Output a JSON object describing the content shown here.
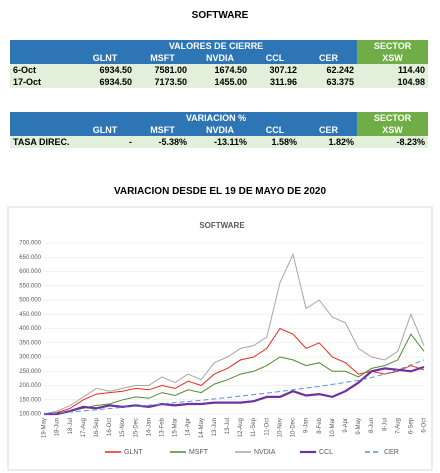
{
  "title": "SOFTWARE",
  "table1": {
    "group": "VALORES DE CIERRE",
    "sector": "SECTOR",
    "columns": [
      "GLNT",
      "MSFT",
      "NVDIA",
      "CCL",
      "CER",
      "XSW"
    ],
    "rows": [
      [
        "6-Oct",
        "6934.50",
        "7581.00",
        "1674.50",
        "307.12",
        "62.242",
        "114.40"
      ],
      [
        "17-Oct",
        "6934.50",
        "7173.50",
        "1455.00",
        "311.96",
        "63.375",
        "104.98"
      ]
    ]
  },
  "table2": {
    "group": "VARIACION %",
    "sector": "SECTOR",
    "columns": [
      "GLNT",
      "MSFT",
      "NVDIA",
      "CCL",
      "CER",
      "XSW"
    ],
    "rows": [
      [
        "TASA DIREC.",
        "-",
        "-5.38%",
        "-13.11%",
        "1.58%",
        "1.82%",
        "-8.23%"
      ]
    ]
  },
  "heading": "VARIACION DESDE EL 19 DE MAYO DE 2020",
  "chart_data": {
    "type": "line",
    "title": "SOFTWARE",
    "categories": [
      "19-May",
      "18-Jun",
      "18-Jul",
      "17-Aug",
      "16-Sep",
      "16-Oct",
      "15-Nov",
      "15-Dec",
      "14-Jan",
      "13-Feb",
      "15-Mar",
      "14-Apr",
      "14-May",
      "13-Jun",
      "13-Jul",
      "12-Aug",
      "11-Sep",
      "11-Oct",
      "10-Nov",
      "10-Dec",
      "9-Jan",
      "8-Feb",
      "10-Mar",
      "9-Apr",
      "9-May",
      "8-Jun",
      "8-Jul",
      "7-Aug",
      "6-Sep",
      "6-Oct"
    ],
    "series": [
      {
        "name": "GLNT",
        "color": "#e8291c",
        "values": [
          100000,
          105000,
          120000,
          150000,
          170000,
          175000,
          180000,
          190000,
          185000,
          200000,
          190000,
          215000,
          200000,
          240000,
          260000,
          290000,
          300000,
          330000,
          400000,
          380000,
          330000,
          350000,
          300000,
          280000,
          240000,
          250000,
          240000,
          250000,
          270000,
          255000
        ]
      },
      {
        "name": "MSFT",
        "color": "#4e8a2e",
        "values": [
          100000,
          100000,
          110000,
          120000,
          130000,
          135000,
          150000,
          160000,
          155000,
          175000,
          165000,
          185000,
          175000,
          205000,
          220000,
          240000,
          250000,
          270000,
          300000,
          290000,
          270000,
          280000,
          250000,
          250000,
          230000,
          260000,
          270000,
          290000,
          380000,
          320000
        ]
      },
      {
        "name": "NVDIA",
        "color": "#a6a6a6",
        "values": [
          100000,
          110000,
          130000,
          160000,
          190000,
          180000,
          190000,
          200000,
          200000,
          230000,
          210000,
          240000,
          220000,
          280000,
          300000,
          330000,
          340000,
          370000,
          560000,
          660000,
          470000,
          500000,
          440000,
          420000,
          330000,
          300000,
          290000,
          320000,
          450000,
          340000
        ]
      },
      {
        "name": "CCL",
        "color": "#7030a0",
        "values": [
          100000,
          100000,
          110000,
          125000,
          120000,
          130000,
          125000,
          130000,
          125000,
          135000,
          130000,
          135000,
          135000,
          140000,
          140000,
          140000,
          145000,
          160000,
          160000,
          180000,
          165000,
          170000,
          160000,
          180000,
          210000,
          250000,
          260000,
          255000,
          250000,
          265000
        ]
      },
      {
        "name": "CER",
        "color": "#5b8fd6",
        "dashed": true,
        "values": [
          100000,
          103000,
          107000,
          111000,
          115000,
          119000,
          123000,
          127000,
          131000,
          135000,
          140000,
          144000,
          148000,
          153000,
          158000,
          163000,
          168000,
          173000,
          179000,
          185000,
          191000,
          197000,
          204000,
          211000,
          218000,
          228000,
          240000,
          255000,
          272000,
          290000
        ]
      }
    ],
    "ylim": [
      100000,
      700000
    ],
    "yticks": [
      {
        "value": 100000,
        "label": "100.000"
      },
      {
        "value": 150000,
        "label": "150.000"
      },
      {
        "value": 200000,
        "label": "200.000"
      },
      {
        "value": 250000,
        "label": "250.000"
      },
      {
        "value": 300000,
        "label": "300.000"
      },
      {
        "value": 350000,
        "label": "350.000"
      },
      {
        "value": 400000,
        "label": "400.000"
      },
      {
        "value": 450000,
        "label": "450.000"
      },
      {
        "value": 500000,
        "label": "500.000"
      },
      {
        "value": 550000,
        "label": "550.000"
      },
      {
        "value": 600000,
        "label": "600.000"
      },
      {
        "value": 650000,
        "label": "650.000"
      },
      {
        "value": 700000,
        "label": "700.000"
      }
    ],
    "grid": true
  }
}
